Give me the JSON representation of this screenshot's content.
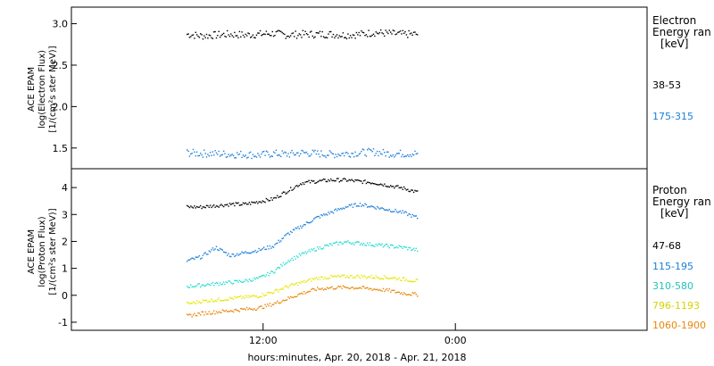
{
  "chart_data": [
    {
      "type": "scatter",
      "ylabel": [
        "ACE EPAM",
        "log(Electron Flux)",
        "[1/(cm²s ster MeV)]"
      ],
      "ylim": [
        1.25,
        3.2
      ],
      "yticks": [
        "1.5",
        "2.0",
        "2.5",
        "3.0"
      ],
      "yticks_values": [
        1.5,
        2.0,
        2.5,
        3.0
      ],
      "legend_title": [
        "Electron",
        "Energy ran",
        "[keV]"
      ],
      "series": [
        {
          "name": "38-53",
          "color": "#000000",
          "start": 0.2,
          "end": 0.6,
          "values": [
            2.88,
            2.86,
            2.87,
            2.88,
            2.87,
            2.88,
            2.89,
            2.87,
            2.88,
            2.88,
            2.88,
            2.87,
            2.88,
            2.9,
            2.89,
            2.88,
            2.88
          ]
        },
        {
          "name": "175-315",
          "color": "#1a7fd9",
          "start": 0.2,
          "end": 0.6,
          "values": [
            1.45,
            1.44,
            1.44,
            1.43,
            1.43,
            1.42,
            1.44,
            1.43,
            1.45,
            1.44,
            1.43,
            1.44,
            1.45,
            1.46,
            1.44,
            1.44,
            1.44
          ]
        }
      ]
    },
    {
      "type": "scatter",
      "ylabel": [
        "ACE EPAM",
        "log(Proton Flux)",
        "[1/(cm²s ster MeV)]"
      ],
      "ylim": [
        -1.3,
        4.7
      ],
      "yticks": [
        "-1",
        "0",
        "1",
        "2",
        "3",
        "4"
      ],
      "yticks_values": [
        -1,
        0,
        1,
        2,
        3,
        4
      ],
      "legend_title": [
        "Proton",
        "Energy ran",
        "[keV]"
      ],
      "series": [
        {
          "name": "47-68",
          "color": "#000000",
          "start": 0.2,
          "end": 0.6,
          "values": [
            3.3,
            3.3,
            3.35,
            3.4,
            3.4,
            3.5,
            3.6,
            3.9,
            4.2,
            4.25,
            4.3,
            4.3,
            4.25,
            4.2,
            4.1,
            4.0,
            3.85
          ]
        },
        {
          "name": "115-195",
          "color": "#1a7fd9",
          "start": 0.2,
          "end": 0.6,
          "values": [
            1.3,
            1.45,
            1.8,
            1.5,
            1.6,
            1.7,
            1.85,
            2.3,
            2.6,
            2.9,
            3.1,
            3.3,
            3.4,
            3.3,
            3.2,
            3.1,
            2.9
          ]
        },
        {
          "name": "310-580",
          "color": "#22dcd0",
          "start": 0.2,
          "end": 0.6,
          "values": [
            0.35,
            0.4,
            0.45,
            0.5,
            0.55,
            0.65,
            0.9,
            1.3,
            1.55,
            1.75,
            1.9,
            2.0,
            1.95,
            1.9,
            1.85,
            1.8,
            1.7
          ]
        },
        {
          "name": "796-1193",
          "color": "#e6e600",
          "start": 0.2,
          "end": 0.6,
          "values": [
            -0.3,
            -0.2,
            -0.15,
            -0.1,
            -0.05,
            0.0,
            0.15,
            0.35,
            0.5,
            0.65,
            0.7,
            0.72,
            0.72,
            0.7,
            0.68,
            0.62,
            0.55
          ]
        },
        {
          "name": "1060-1900",
          "color": "#e8860a",
          "start": 0.2,
          "end": 0.6,
          "values": [
            -0.75,
            -0.65,
            -0.6,
            -0.55,
            -0.5,
            -0.45,
            -0.3,
            -0.1,
            0.1,
            0.25,
            0.3,
            0.32,
            0.3,
            0.25,
            0.2,
            0.1,
            0.05
          ]
        }
      ]
    }
  ],
  "x_axis": {
    "ticks": [
      "12:00",
      "0:00"
    ],
    "ticks_positions": [
      0.333,
      0.667
    ],
    "label": "hours:minutes, Apr. 20, 2018 - Apr. 21, 2018"
  }
}
